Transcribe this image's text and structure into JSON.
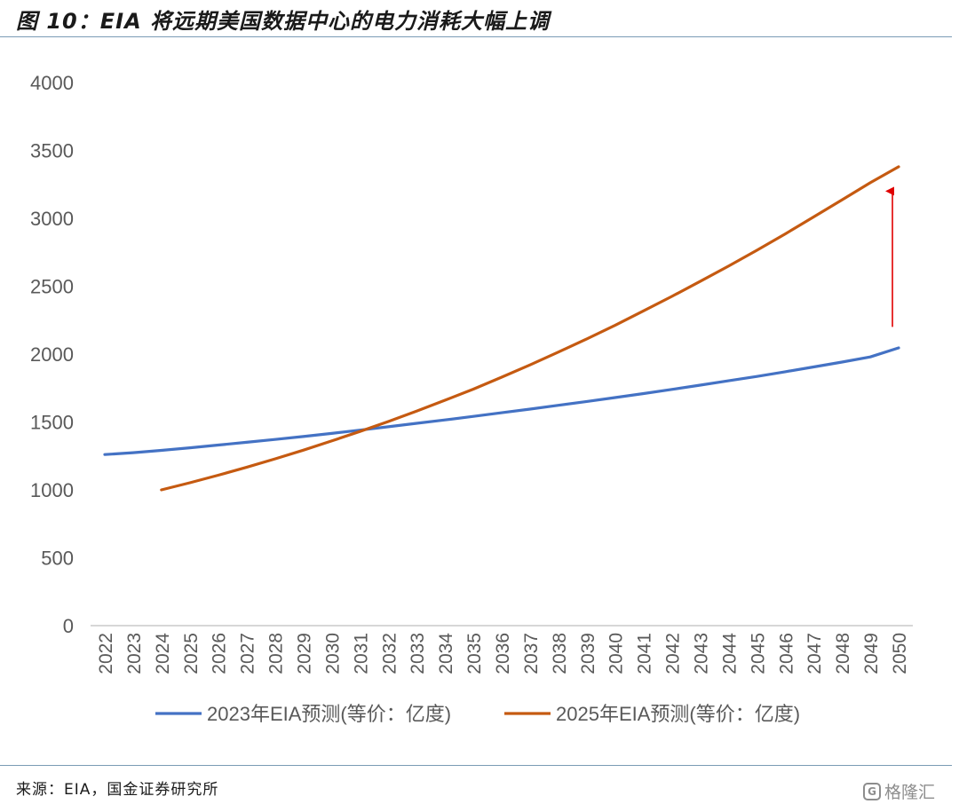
{
  "header": {
    "title": "图 10：EIA 将远期美国数据中心的电力消耗大幅上调"
  },
  "footer": {
    "source": "来源：EIA，国金证券研究所",
    "watermark": "格隆汇",
    "watermark_icon": "gelonghui-logo-icon"
  },
  "colors": {
    "series_2023": "#4472C4",
    "series_2025": "#C55A11",
    "arrow": "#E00000",
    "axis_text": "#595959",
    "rule": "#7a9bb5"
  },
  "chart_data": {
    "type": "line",
    "title": "",
    "xlabel": "",
    "ylabel": "",
    "ylim": [
      0,
      4000
    ],
    "yticks": [
      0,
      500,
      1000,
      1500,
      2000,
      2500,
      3000,
      3500,
      4000
    ],
    "grid": false,
    "legend_position": "bottom",
    "x": [
      "2022",
      "2023",
      "2024",
      "2025",
      "2026",
      "2027",
      "2028",
      "2029",
      "2030",
      "2031",
      "2032",
      "2033",
      "2034",
      "2035",
      "2036",
      "2037",
      "2038",
      "2039",
      "2040",
      "2041",
      "2042",
      "2043",
      "2044",
      "2045",
      "2046",
      "2047",
      "2048",
      "2049",
      "2050"
    ],
    "series": [
      {
        "name": "2023年EIA预测(等价：亿度)",
        "color": "#4472C4",
        "values": [
          1260,
          1274,
          1291,
          1310,
          1330,
          1350,
          1371,
          1393,
          1416,
          1440,
          1465,
          1490,
          1515,
          1541,
          1568,
          1595,
          1623,
          1651,
          1680,
          1709,
          1740,
          1771,
          1803,
          1835,
          1870,
          1905,
          1941,
          1979,
          2046
        ]
      },
      {
        "name": "2025年EIA预测(等价：亿度)",
        "color": "#C55A11",
        "values": [
          null,
          null,
          1000,
          1052,
          1108,
          1166,
          1228,
          1292,
          1360,
          1430,
          1503,
          1580,
          1660,
          1742,
          1830,
          1920,
          2015,
          2112,
          2212,
          2318,
          2425,
          2535,
          2648,
          2765,
          2885,
          3010,
          3135,
          3262,
          3380
        ]
      }
    ],
    "annotations": [
      {
        "type": "arrow",
        "x": "2050",
        "from": 2200,
        "to": 3200,
        "color": "#E00000"
      }
    ]
  }
}
